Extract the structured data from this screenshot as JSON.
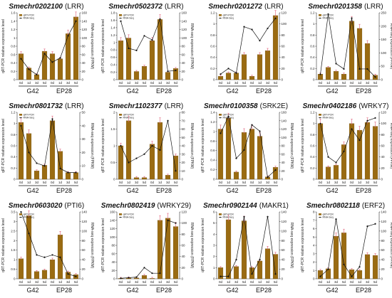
{
  "colors": {
    "bar": "#9a6b12",
    "bar_edge": "#6b4a0a",
    "line": "#111111",
    "error": "#e0607a"
  },
  "chart_data": [
    {
      "type": "bar",
      "title": "Smechr0202100",
      "suffix": "(LRR)",
      "ylim": [
        0,
        1.6
      ],
      "yticks": [
        "0",
        "0.2",
        "0.4",
        "0.6",
        "0.8",
        "1",
        "1.2",
        "1.4",
        "1.6"
      ],
      "y2lim": [
        0,
        160
      ],
      "y2ticks": [
        "0",
        "20",
        "40",
        "60",
        "80",
        "100",
        "120",
        "140",
        "160"
      ],
      "categories": [
        "0d",
        "1d",
        "3d",
        "5d",
        "0d",
        "1d",
        "3d",
        "5d"
      ],
      "groups": [
        "G42",
        "EP28"
      ],
      "ylabel": "qRT-PCR relative expression level",
      "y2label": "RNA-seq expression (FPKM)",
      "legend": [
        "qRT-PCR",
        "RNA-Seq"
      ],
      "series": [
        {
          "name": "qRT-PCR",
          "values": [
            0.62,
            0.28,
            0.12,
            0.68,
            0.62,
            0.5,
            1.1,
            1.5
          ]
        },
        {
          "name": "RNA-Seq",
          "values": [
            50,
            25,
            12,
            62,
            42,
            52,
            105,
            140
          ]
        }
      ]
    },
    {
      "type": "bar",
      "title": "Smechr0502372",
      "suffix": "(LRR)",
      "ylim": [
        0,
        1.8
      ],
      "yticks": [
        "0",
        "0.2",
        "0.4",
        "0.6",
        "0.8",
        "1",
        "1.2",
        "1.4",
        "1.6",
        "1.8"
      ],
      "y2lim": [
        0,
        160
      ],
      "y2ticks": [
        "0",
        "20",
        "40",
        "60",
        "80",
        "100",
        "120",
        "140",
        "160"
      ],
      "categories": [
        "0d",
        "1d",
        "3d",
        "5d",
        "0d",
        "1d",
        "3d",
        "5d"
      ],
      "groups": [
        "G42",
        "EP28"
      ],
      "ylabel": "qRT-PCR relative expression level",
      "y2label": "RNA-seq expression (FPKM)",
      "legend": [
        "qRT-PCR",
        "RNA-Seq"
      ],
      "series": [
        {
          "name": "qRT-PCR",
          "values": [
            1.05,
            1.12,
            0.22,
            0.36,
            1.05,
            1.62,
            0.2,
            0.3
          ]
        },
        {
          "name": "RNA-Seq",
          "values": [
            140,
            75,
            70,
            105,
            95,
            145,
            20,
            22
          ]
        }
      ]
    },
    {
      "type": "bar",
      "title": "Smechr0201272",
      "suffix": "(LRR)",
      "ylim": [
        0,
        1.2
      ],
      "yticks": [
        "0",
        "0.2",
        "0.4",
        "0.6",
        "0.8",
        "1",
        "1.2"
      ],
      "y2lim": [
        0,
        120
      ],
      "y2ticks": [
        "0",
        "20",
        "40",
        "60",
        "80",
        "100",
        "120"
      ],
      "categories": [
        "0d",
        "1d",
        "3d",
        "5d",
        "0d",
        "1d",
        "3d",
        "5d"
      ],
      "groups": [
        "G42",
        "EP28"
      ],
      "ylabel": "",
      "y2label": "",
      "legend": [
        "qRT-PCR",
        "RNA-Seq"
      ],
      "series": [
        {
          "name": "qRT-PCR",
          "values": [
            0.06,
            0.12,
            0.12,
            0.45,
            0.06,
            0.45,
            0.52,
            1.15
          ]
        },
        {
          "name": "RNA-Seq",
          "values": [
            10,
            20,
            12,
            95,
            90,
            70,
            92,
            110
          ]
        }
      ]
    },
    {
      "type": "bar",
      "title": "Smechr0201358",
      "suffix": "(LRR)",
      "ylim": [
        0,
        1.2
      ],
      "yticks": [
        "0",
        "0.2",
        "0.4",
        "0.6",
        "0.8",
        "1",
        "1.2"
      ],
      "y2lim": [
        0,
        250
      ],
      "y2ticks": [
        "0",
        "50",
        "100",
        "150",
        "200",
        "250"
      ],
      "categories": [
        "0d",
        "1d",
        "3d",
        "5d",
        "0d",
        "1d",
        "3d",
        "5d"
      ],
      "groups": [
        "G42",
        "EP28"
      ],
      "ylabel": "qRT-PCR relative expression level",
      "y2label": "RNA-seq expression (FPKM)",
      "legend": [
        "qRT-PCR",
        "RNA-Seq"
      ],
      "series": [
        {
          "name": "qRT-PCR",
          "values": [
            0.1,
            0.22,
            0.15,
            0.1,
            1.05,
            0.92,
            0.65,
            0.08
          ]
        },
        {
          "name": "RNA-Seq",
          "values": [
            20,
            245,
            60,
            40,
            230,
            40,
            40,
            10
          ]
        }
      ]
    },
    {
      "type": "bar",
      "title": "Smechr0801732",
      "suffix": "(LRR)",
      "ylim": [
        0,
        1.2
      ],
      "yticks": [
        "0",
        "0.2",
        "0.4",
        "0.6",
        "0.8",
        "1",
        "1.2"
      ],
      "y2lim": [
        0,
        50
      ],
      "y2ticks": [
        "0",
        "10",
        "20",
        "30",
        "40",
        "50"
      ],
      "categories": [
        "0d",
        "1d",
        "3d",
        "5d",
        "0d",
        "1d",
        "3d",
        "5d"
      ],
      "groups": [
        "G42",
        "EP28"
      ],
      "ylabel": "qRT-PCR relative expression level",
      "y2label": "RNA-seq expression (FPKM)",
      "legend": [
        "qRT-PCR",
        "RNA-Seq"
      ],
      "series": [
        {
          "name": "qRT-PCR",
          "values": [
            1.02,
            0.82,
            0.15,
            0.25,
            1.05,
            0.5,
            0.12,
            0.12
          ]
        },
        {
          "name": "RNA-Seq",
          "values": [
            40,
            20,
            12,
            10,
            45,
            8,
            5,
            5
          ]
        }
      ]
    },
    {
      "type": "bar",
      "title": "Smechr1102377",
      "suffix": "(LRR)",
      "ylim": [
        0,
        2
      ],
      "yticks": [
        "0",
        "0.5",
        "1",
        "1.5",
        "2"
      ],
      "y2lim": [
        0,
        80
      ],
      "y2ticks": [
        "0",
        "10",
        "20",
        "30",
        "40",
        "50",
        "60",
        "70",
        "80"
      ],
      "categories": [
        "0d",
        "1d",
        "3d",
        "5d",
        "0d",
        "1d",
        "3d",
        "5d"
      ],
      "groups": [
        "G42",
        "EP28"
      ],
      "ylabel": "qRT-PCR relative expression level",
      "y2label": "RNA-seq expression (FPKM)",
      "legend": [
        "qRT-PCR",
        "RNA-Seq"
      ],
      "series": [
        {
          "name": "qRT-PCR",
          "values": [
            1.0,
            1.75,
            0.05,
            0.05,
            1.05,
            1.7,
            0.12,
            0.7
          ]
        },
        {
          "name": "RNA-Seq",
          "values": [
            40,
            20,
            25,
            30,
            40,
            35,
            70,
            10
          ]
        }
      ]
    },
    {
      "type": "bar",
      "title": "Smechr0100358",
      "suffix": "(SRK2E)",
      "ylim": [
        0,
        1.4
      ],
      "yticks": [
        "0",
        "0.2",
        "0.4",
        "0.6",
        "0.8",
        "1",
        "1.2",
        "1.4"
      ],
      "y2lim": [
        0,
        160
      ],
      "y2ticks": [
        "0",
        "20",
        "40",
        "60",
        "80",
        "100",
        "120",
        "140",
        "160"
      ],
      "categories": [
        "0d",
        "1d",
        "3d",
        "5d",
        "0d",
        "1d",
        "3d",
        "5d"
      ],
      "groups": [
        "G42",
        "EP28"
      ],
      "ylabel": "qRT-PCR relative expression level",
      "y2label": "RNA-seq expression (FPKM)",
      "legend": [
        "qRT-PCR",
        "RNA-Seq"
      ],
      "series": [
        {
          "name": "qRT-PCR",
          "values": [
            1.05,
            1.28,
            0.15,
            0.98,
            1.05,
            0.9,
            0.05,
            0.25
          ]
        },
        {
          "name": "RNA-Seq",
          "values": [
            110,
            150,
            50,
            70,
            130,
            115,
            5,
            22
          ]
        }
      ]
    },
    {
      "type": "bar",
      "title": "Smechr0402186",
      "suffix": "(WRKY7)",
      "ylim": [
        0,
        1.2
      ],
      "yticks": [
        "0",
        "0.2",
        "0.4",
        "0.6",
        "0.8",
        "1",
        "1.2"
      ],
      "y2lim": [
        0,
        120
      ],
      "y2ticks": [
        "0",
        "20",
        "40",
        "60",
        "80",
        "100",
        "120"
      ],
      "categories": [
        "0d",
        "1d",
        "3d",
        "5d",
        "0d",
        "1d",
        "3d",
        "5d"
      ],
      "groups": [
        "G42",
        "EP28"
      ],
      "ylabel": "qRT-PCR relative expression level",
      "y2label": "RNA-seq expression (FPKM)",
      "legend": [
        "qRT-PCR",
        "RNA-Seq"
      ],
      "series": [
        {
          "name": "qRT-PCR",
          "values": [
            1.0,
            0.22,
            0.25,
            0.62,
            1.0,
            0.88,
            1.02,
            0.95
          ]
        },
        {
          "name": "RNA-Seq",
          "values": [
            100,
            40,
            30,
            50,
            90,
            70,
            105,
            110
          ]
        }
      ]
    },
    {
      "type": "bar",
      "title": "Smechr0603020",
      "suffix": "(PTI6)",
      "ylim": [
        0,
        3.5
      ],
      "yticks": [
        "0",
        "0.5",
        "1",
        "1.5",
        "2",
        "2.5",
        "3",
        "3.5"
      ],
      "y2lim": [
        0,
        140
      ],
      "y2ticks": [
        "0",
        "20",
        "40",
        "60",
        "80",
        "100",
        "120",
        "140"
      ],
      "categories": [
        "0d",
        "1d",
        "3d",
        "5d",
        "0d",
        "1d",
        "3d",
        "5d"
      ],
      "groups": [
        "G42",
        "EP28"
      ],
      "ylabel": "qRT-PCR relative expression level",
      "y2label": "RNA-seq expression (FPKM)",
      "legend": [
        "qRT-PCR",
        "RNA-Seq"
      ],
      "series": [
        {
          "name": "qRT-PCR",
          "values": [
            1.05,
            3.3,
            0.38,
            0.45,
            1.0,
            2.3,
            0.35,
            0.22
          ]
        },
        {
          "name": "RNA-Seq",
          "values": [
            140,
            95,
            50,
            45,
            50,
            45,
            10,
            5
          ]
        }
      ]
    },
    {
      "type": "bar",
      "title": "Smechr0802419",
      "suffix": "(WRKY29)",
      "ylim": [
        0,
        160
      ],
      "yticks": [
        "0",
        "20",
        "40",
        "60",
        "80",
        "100",
        "120",
        "140",
        "160"
      ],
      "y2lim": [
        0,
        120
      ],
      "y2ticks": [
        "0",
        "20",
        "40",
        "60",
        "80",
        "100",
        "120"
      ],
      "categories": [
        "0d",
        "1d",
        "3d",
        "5d",
        "0d",
        "1d",
        "3d",
        "5d"
      ],
      "groups": [
        "G42",
        "EP28"
      ],
      "ylabel": "qRT-PCR relative expression level",
      "y2label": "RNA-seq expression (FPKM)",
      "legend": [
        "qRT-PCR",
        "RNA-Seq"
      ],
      "series": [
        {
          "name": "qRT-PCR",
          "values": [
            1,
            2,
            2,
            8,
            1,
            140,
            145,
            125
          ]
        },
        {
          "name": "RNA-Seq",
          "values": [
            1,
            2,
            3,
            20,
            10,
            10,
            105,
            100
          ]
        }
      ]
    },
    {
      "type": "bar",
      "title": "Smechr0902144",
      "suffix": "(MAKR1)",
      "ylim": [
        0,
        6
      ],
      "yticks": [
        "0",
        "1",
        "2",
        "3",
        "4",
        "5",
        "6"
      ],
      "y2lim": [
        0,
        140
      ],
      "y2ticks": [
        "0",
        "20",
        "40",
        "60",
        "80",
        "100",
        "120",
        "140"
      ],
      "categories": [
        "0d",
        "1d",
        "3d",
        "5d",
        "0d",
        "1d",
        "3d",
        "5d"
      ],
      "groups": [
        "G42",
        "EP28"
      ],
      "ylabel": "qRT-PCR relative expression level",
      "y2label": "RNA-seq expression (FPKM)",
      "legend": [
        "qRT-PCR",
        "RNA-Seq"
      ],
      "series": [
        {
          "name": "qRT-PCR",
          "values": [
            1.0,
            5.3,
            1.1,
            5.2,
            1.0,
            1.6,
            2.7,
            2.2
          ]
        },
        {
          "name": "RNA-Seq",
          "values": [
            5,
            5,
            40,
            130,
            10,
            40,
            130,
            10
          ]
        }
      ]
    },
    {
      "type": "bar",
      "title": "Smechr0802118",
      "suffix": "(ERF2)",
      "ylim": [
        0,
        8
      ],
      "yticks": [
        "0",
        "1",
        "2",
        "3",
        "4",
        "5",
        "6",
        "7",
        "8"
      ],
      "y2lim": [
        0,
        140
      ],
      "y2ticks": [
        "0",
        "20",
        "40",
        "60",
        "80",
        "100",
        "120",
        "140"
      ],
      "categories": [
        "0d",
        "1d",
        "3d",
        "5d",
        "0d",
        "1d",
        "3d",
        "5d"
      ],
      "groups": [
        "G42",
        "EP28"
      ],
      "ylabel": "qRT-PCR relative expression level",
      "y2label": "RNA-seq expression (FPKM)",
      "legend": [
        "qRT-PCR",
        "RNA-Seq"
      ],
      "series": [
        {
          "name": "qRT-PCR",
          "values": [
            1.0,
            1.2,
            5.1,
            5.5,
            1.1,
            1.0,
            2.9,
            2.8
          ]
        },
        {
          "name": "RNA-Seq",
          "values": [
            5,
            20,
            125,
            30,
            5,
            25,
            110,
            115
          ]
        }
      ]
    }
  ]
}
